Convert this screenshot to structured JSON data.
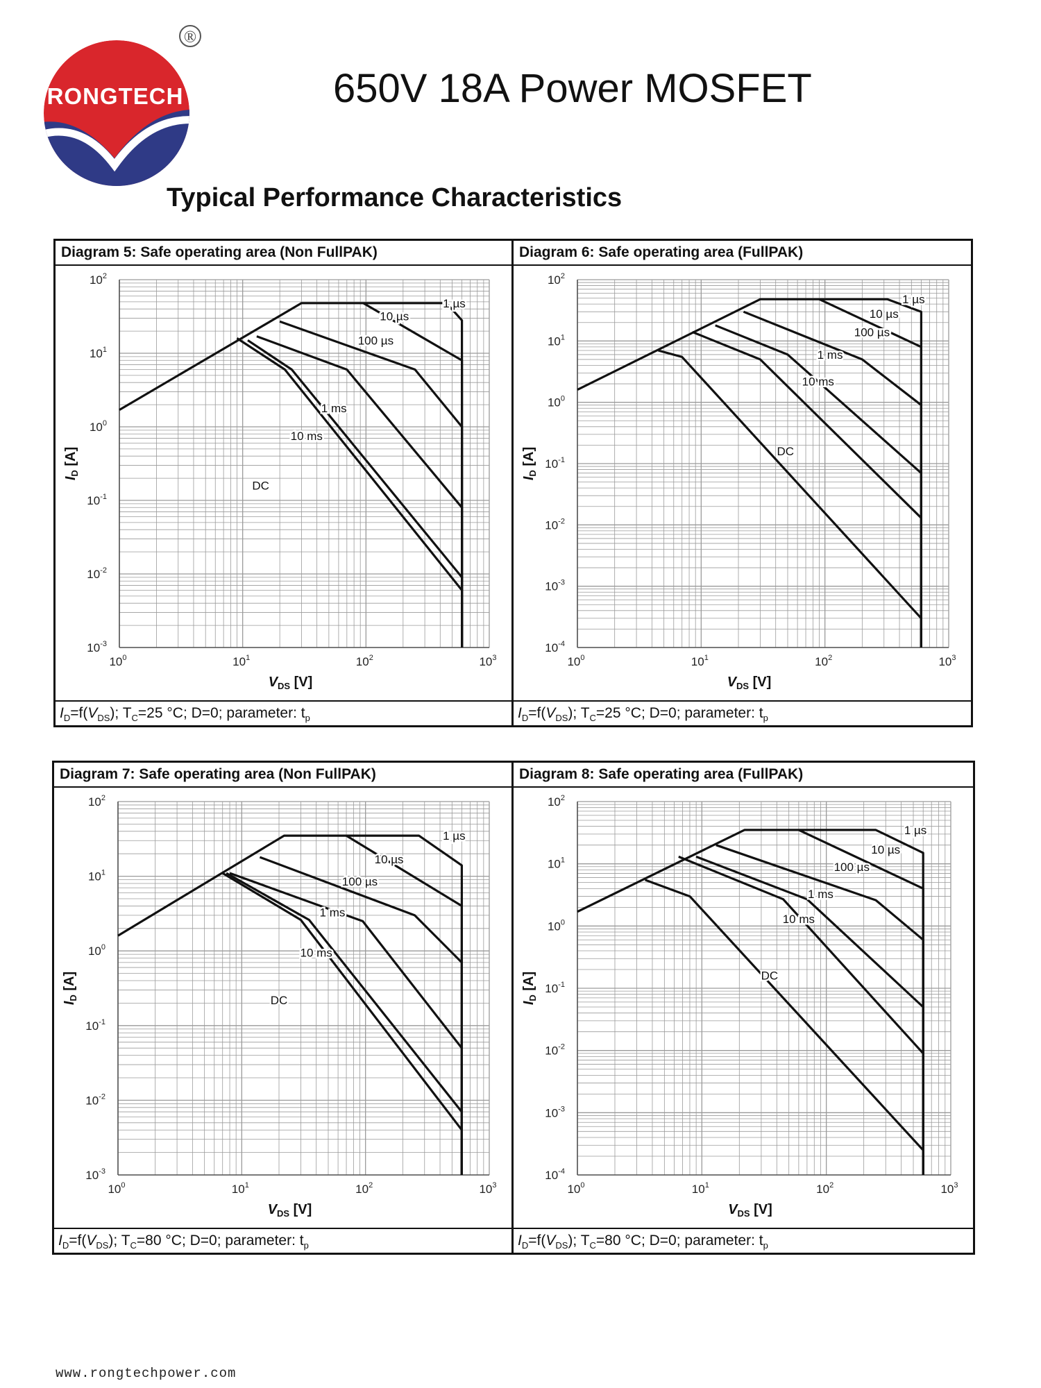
{
  "header": {
    "logo_text": "RONGTECH",
    "registered_mark": "®",
    "title": "650V 18A Power MOSFET",
    "section_title": "Typical Performance Characteristics"
  },
  "footer": {
    "url": "www.rongtechpower.com"
  },
  "colors": {
    "logo_red": "#d9262c",
    "logo_blue": "#2f3a86",
    "line": "#111111",
    "grid": "#9a9a9a"
  },
  "chart_data": [
    {
      "type": "line",
      "title": "Diagram 5: Safe operating area (Non FullPAK)",
      "footer": {
        "id": "I",
        "id_sub": "D",
        "eq": "=f(",
        "v": "V",
        "v_sub": "DS",
        "tc": "); T",
        "tc_sub": "C",
        "rest": "=25 °C; D=0; parameter: t",
        "tp_sub": "p"
      },
      "xlabel": "V_DS [V]",
      "ylabel": "I_D [A]",
      "xscale": "log",
      "yscale": "log",
      "xlim": [
        1,
        1000
      ],
      "ylim": [
        0.001,
        100
      ],
      "xticks": [
        {
          "base": "10",
          "exp": "0"
        },
        {
          "base": "10",
          "exp": "1"
        },
        {
          "base": "10",
          "exp": "2"
        },
        {
          "base": "10",
          "exp": "3"
        }
      ],
      "yticks": [
        {
          "base": "10",
          "exp": "-3"
        },
        {
          "base": "10",
          "exp": "-2"
        },
        {
          "base": "10",
          "exp": "-1"
        },
        {
          "base": "10",
          "exp": "0"
        },
        {
          "base": "10",
          "exp": "1"
        },
        {
          "base": "10",
          "exp": "2"
        }
      ],
      "series": [
        {
          "name": "1 µs",
          "x": [
            1,
            30,
            450,
            600,
            600
          ],
          "y": [
            1.7,
            48,
            48,
            28,
            0.001
          ],
          "label_at": [
            520,
            48
          ]
        },
        {
          "name": "10 µs",
          "x": [
            95,
            600,
            600
          ],
          "y": [
            48,
            8,
            0.001
          ],
          "label_at": [
            170,
            32
          ]
        },
        {
          "name": "100 µs",
          "x": [
            20,
            250,
            600,
            600
          ],
          "y": [
            27,
            6,
            1.0,
            0.001
          ],
          "label_at": [
            120,
            15
          ]
        },
        {
          "name": "1 ms",
          "x": [
            13,
            70,
            600,
            600
          ],
          "y": [
            17,
            6,
            0.08,
            0.001
          ],
          "label_at": [
            55,
            1.8
          ]
        },
        {
          "name": "10 ms",
          "x": [
            11,
            25,
            600,
            600
          ],
          "y": [
            15,
            6,
            0.009,
            0.001
          ],
          "label_at": [
            33,
            0.75
          ]
        },
        {
          "name": "DC",
          "x": [
            9,
            22,
            600,
            600
          ],
          "y": [
            16,
            6,
            0.006,
            0.001
          ],
          "label_at": [
            14,
            0.16
          ]
        }
      ]
    },
    {
      "type": "line",
      "title": "Diagram 6: Safe operating area (FullPAK)",
      "footer": {
        "id": "I",
        "id_sub": "D",
        "eq": "=f(",
        "v": "V",
        "v_sub": "DS",
        "tc": "); T",
        "tc_sub": "C",
        "rest": "=25 °C; D=0; parameter: t",
        "tp_sub": "p"
      },
      "xlabel": "V_DS [V]",
      "ylabel": "I_D [A]",
      "xscale": "log",
      "yscale": "log",
      "xlim": [
        1,
        1000
      ],
      "ylim": [
        0.0001,
        100
      ],
      "xticks": [
        {
          "base": "10",
          "exp": "0"
        },
        {
          "base": "10",
          "exp": "1"
        },
        {
          "base": "10",
          "exp": "2"
        },
        {
          "base": "10",
          "exp": "3"
        }
      ],
      "yticks": [
        {
          "base": "10",
          "exp": "-4"
        },
        {
          "base": "10",
          "exp": "-3"
        },
        {
          "base": "10",
          "exp": "-2"
        },
        {
          "base": "10",
          "exp": "-1"
        },
        {
          "base": "10",
          "exp": "0"
        },
        {
          "base": "10",
          "exp": "1"
        },
        {
          "base": "10",
          "exp": "2"
        }
      ],
      "series": [
        {
          "name": "1 µs",
          "x": [
            1,
            30,
            320,
            600,
            600
          ],
          "y": [
            1.6,
            48,
            48,
            30,
            0.0001
          ],
          "label_at": [
            520,
            48
          ]
        },
        {
          "name": "10 µs",
          "x": [
            90,
            600,
            600
          ],
          "y": [
            48,
            8,
            0.0001
          ],
          "label_at": [
            300,
            28
          ]
        },
        {
          "name": "100 µs",
          "x": [
            22,
            200,
            600,
            600
          ],
          "y": [
            30,
            5,
            0.9,
            0.0001
          ],
          "label_at": [
            240,
            14
          ]
        },
        {
          "name": "1 ms",
          "x": [
            13,
            50,
            600,
            600
          ],
          "y": [
            18,
            6,
            0.07,
            0.0001
          ],
          "label_at": [
            110,
            6
          ]
        },
        {
          "name": "10 ms",
          "x": [
            8.5,
            30,
            600,
            600
          ],
          "y": [
            14,
            5,
            0.013,
            0.0001
          ],
          "label_at": [
            88,
            2.2
          ]
        },
        {
          "name": "DC",
          "x": [
            4.5,
            7,
            600,
            600
          ],
          "y": [
            7,
            5.5,
            0.0003,
            0.0001
          ],
          "label_at": [
            48,
            0.16
          ]
        }
      ]
    },
    {
      "type": "line",
      "title": "Diagram 7: Safe operating area (Non FullPAK)",
      "footer": {
        "id": "I",
        "id_sub": "D",
        "eq": "=f(",
        "v": "V",
        "v_sub": "DS",
        "tc": "); T",
        "tc_sub": "C",
        "rest": "=80 °C; D=0; parameter: t",
        "tp_sub": "p"
      },
      "xlabel": "V_DS [V]",
      "ylabel": "I_D [A]",
      "xscale": "log",
      "yscale": "log",
      "xlim": [
        1,
        1000
      ],
      "ylim": [
        0.001,
        100
      ],
      "xticks": [
        {
          "base": "10",
          "exp": "0"
        },
        {
          "base": "10",
          "exp": "1"
        },
        {
          "base": "10",
          "exp": "2"
        },
        {
          "base": "10",
          "exp": "3"
        }
      ],
      "yticks": [
        {
          "base": "10",
          "exp": "-3"
        },
        {
          "base": "10",
          "exp": "-2"
        },
        {
          "base": "10",
          "exp": "-1"
        },
        {
          "base": "10",
          "exp": "0"
        },
        {
          "base": "10",
          "exp": "1"
        },
        {
          "base": "10",
          "exp": "2"
        }
      ],
      "series": [
        {
          "name": "1 µs",
          "x": [
            1,
            22,
            270,
            600,
            600
          ],
          "y": [
            1.6,
            35,
            35,
            14,
            0.001
          ],
          "label_at": [
            520,
            35
          ]
        },
        {
          "name": "10 µs",
          "x": [
            70,
            600,
            600
          ],
          "y": [
            35,
            4,
            0.001
          ],
          "label_at": [
            155,
            17
          ]
        },
        {
          "name": "100 µs",
          "x": [
            14,
            250,
            600,
            600
          ],
          "y": [
            18,
            3,
            0.7,
            0.001
          ],
          "label_at": [
            90,
            8.5
          ]
        },
        {
          "name": "1 ms",
          "x": [
            8,
            95,
            600,
            600
          ],
          "y": [
            11,
            2.5,
            0.05,
            0.001
          ],
          "label_at": [
            54,
            3.3
          ]
        },
        {
          "name": "10 ms",
          "x": [
            7.5,
            35,
            600,
            600
          ],
          "y": [
            11,
            2.6,
            0.007,
            0.001
          ],
          "label_at": [
            40,
            0.95
          ]
        },
        {
          "name": "DC",
          "x": [
            7,
            30,
            600,
            600
          ],
          "y": [
            11,
            2.6,
            0.004,
            0.001
          ],
          "label_at": [
            20,
            0.22
          ]
        }
      ]
    },
    {
      "type": "line",
      "title": "Diagram 8: Safe operating area (FullPAK)",
      "footer": {
        "id": "I",
        "id_sub": "D",
        "eq": "=f(",
        "v": "V",
        "v_sub": "DS",
        "tc": "); T",
        "tc_sub": "C",
        "rest": "=80 °C; D=0; parameter: t",
        "tp_sub": "p"
      },
      "xlabel": "V_DS [V]",
      "ylabel": "I_D [A]",
      "xscale": "log",
      "yscale": "log",
      "xlim": [
        1,
        1000
      ],
      "ylim": [
        0.0001,
        100
      ],
      "xticks": [
        {
          "base": "10",
          "exp": "0"
        },
        {
          "base": "10",
          "exp": "1"
        },
        {
          "base": "10",
          "exp": "2"
        },
        {
          "base": "10",
          "exp": "3"
        }
      ],
      "yticks": [
        {
          "base": "10",
          "exp": "-4"
        },
        {
          "base": "10",
          "exp": "-3"
        },
        {
          "base": "10",
          "exp": "-2"
        },
        {
          "base": "10",
          "exp": "-1"
        },
        {
          "base": "10",
          "exp": "0"
        },
        {
          "base": "10",
          "exp": "1"
        },
        {
          "base": "10",
          "exp": "2"
        }
      ],
      "series": [
        {
          "name": "1 µs",
          "x": [
            1,
            22,
            250,
            600,
            600
          ],
          "y": [
            1.7,
            35,
            35,
            15,
            0.0001
          ],
          "label_at": [
            520,
            35
          ]
        },
        {
          "name": "10 µs",
          "x": [
            60,
            600,
            600
          ],
          "y": [
            35,
            4,
            0.0001
          ],
          "label_at": [
            300,
            17
          ]
        },
        {
          "name": "100 µs",
          "x": [
            13,
            250,
            600,
            600
          ],
          "y": [
            20,
            2.6,
            0.6,
            0.0001
          ],
          "label_at": [
            160,
            9
          ]
        },
        {
          "name": "1 ms",
          "x": [
            9,
            70,
            600,
            600
          ],
          "y": [
            13,
            2.7,
            0.05,
            0.0001
          ],
          "label_at": [
            90,
            3.3
          ]
        },
        {
          "name": "10 ms",
          "x": [
            6.5,
            45,
            600,
            600
          ],
          "y": [
            13,
            2.7,
            0.009,
            0.0001
          ],
          "label_at": [
            60,
            1.3
          ]
        },
        {
          "name": "DC",
          "x": [
            3.5,
            8,
            600,
            600
          ],
          "y": [
            5.5,
            3,
            0.00025,
            0.0001
          ],
          "label_at": [
            35,
            0.16
          ]
        }
      ]
    }
  ]
}
